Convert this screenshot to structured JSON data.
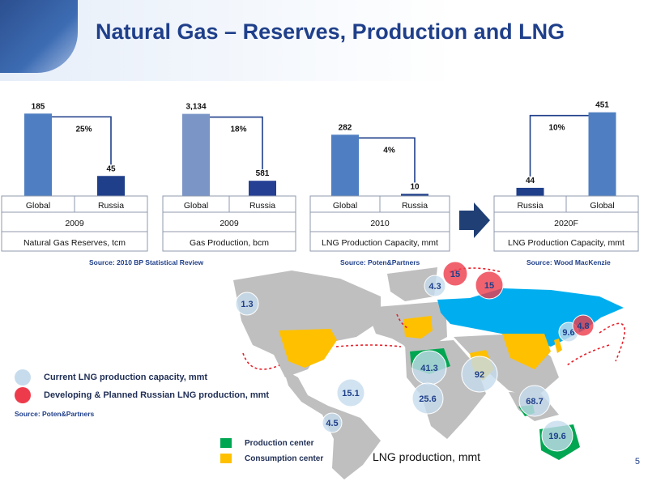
{
  "page": {
    "title": "Natural Gas – Reserves, Production and LNG",
    "page_number": "5"
  },
  "sources": {
    "bp": "Source:  2010 BP Statistical Review",
    "poten": "Source:  Poten&Partners",
    "wood": "Source:  Wood MacKenzie"
  },
  "chart_data": [
    {
      "type": "bar",
      "categories": [
        "Global",
        "Russia"
      ],
      "values": [
        185,
        45
      ],
      "value_labels": [
        "185",
        "45"
      ],
      "share_label": "25%",
      "year": "2009",
      "title": "Natural Gas Reserves, tcm",
      "colors": [
        "#4f7fc2",
        "#1f3f8a"
      ],
      "ylim": [
        0,
        200
      ]
    },
    {
      "type": "bar",
      "categories": [
        "Global",
        "Russia"
      ],
      "values": [
        3134,
        581
      ],
      "value_labels": [
        "3,134",
        "581"
      ],
      "share_label": "18%",
      "year": "2009",
      "title": "Gas Production, bcm",
      "colors": [
        "#7b95c6",
        "#253f93"
      ],
      "ylim": [
        0,
        3400
      ]
    },
    {
      "type": "bar",
      "categories": [
        "Global",
        "Russia"
      ],
      "values": [
        282,
        10
      ],
      "value_labels": [
        "282",
        "10"
      ],
      "share_label": "4%",
      "year": "2010",
      "title": "LNG Production Capacity, mmt",
      "colors": [
        "#4f7fc2",
        "#1f3f8a"
      ],
      "ylim": [
        0,
        410
      ]
    },
    {
      "type": "bar",
      "categories": [
        "Russia",
        "Global"
      ],
      "values": [
        44,
        451
      ],
      "value_labels": [
        "44",
        "451"
      ],
      "share_label": "10%",
      "year": "2020F",
      "title": "LNG Production Capacity, mmt",
      "colors": [
        "#1f3f8a",
        "#4f7fc2"
      ],
      "ylim": [
        0,
        480
      ]
    }
  ],
  "map": {
    "current_bubbles": [
      {
        "label": "1.3"
      },
      {
        "label": "4.3"
      },
      {
        "label": "9.6"
      },
      {
        "label": "41.3"
      },
      {
        "label": "92"
      },
      {
        "label": "15.1"
      },
      {
        "label": "25.6"
      },
      {
        "label": "68.7"
      },
      {
        "label": "4.5"
      },
      {
        "label": "19.6"
      }
    ],
    "planned_bubbles": [
      {
        "label": "15"
      },
      {
        "label": "15"
      },
      {
        "label": "4.8"
      }
    ],
    "legend": {
      "current": "Current LNG production capacity, mmt",
      "planned": "Developing & Planned Russian LNG production, mmt",
      "source": "Source:  Poten&Partners",
      "production": "Production center",
      "consumption": "Consumption center",
      "lng": "LNG production, mmt"
    },
    "colors": {
      "current": "#c6dced",
      "planned": "#ee3b4b",
      "russia": "#00aeef",
      "consumption": "#ffc000",
      "production": "#00a651",
      "land": "#bfbfbf"
    }
  }
}
